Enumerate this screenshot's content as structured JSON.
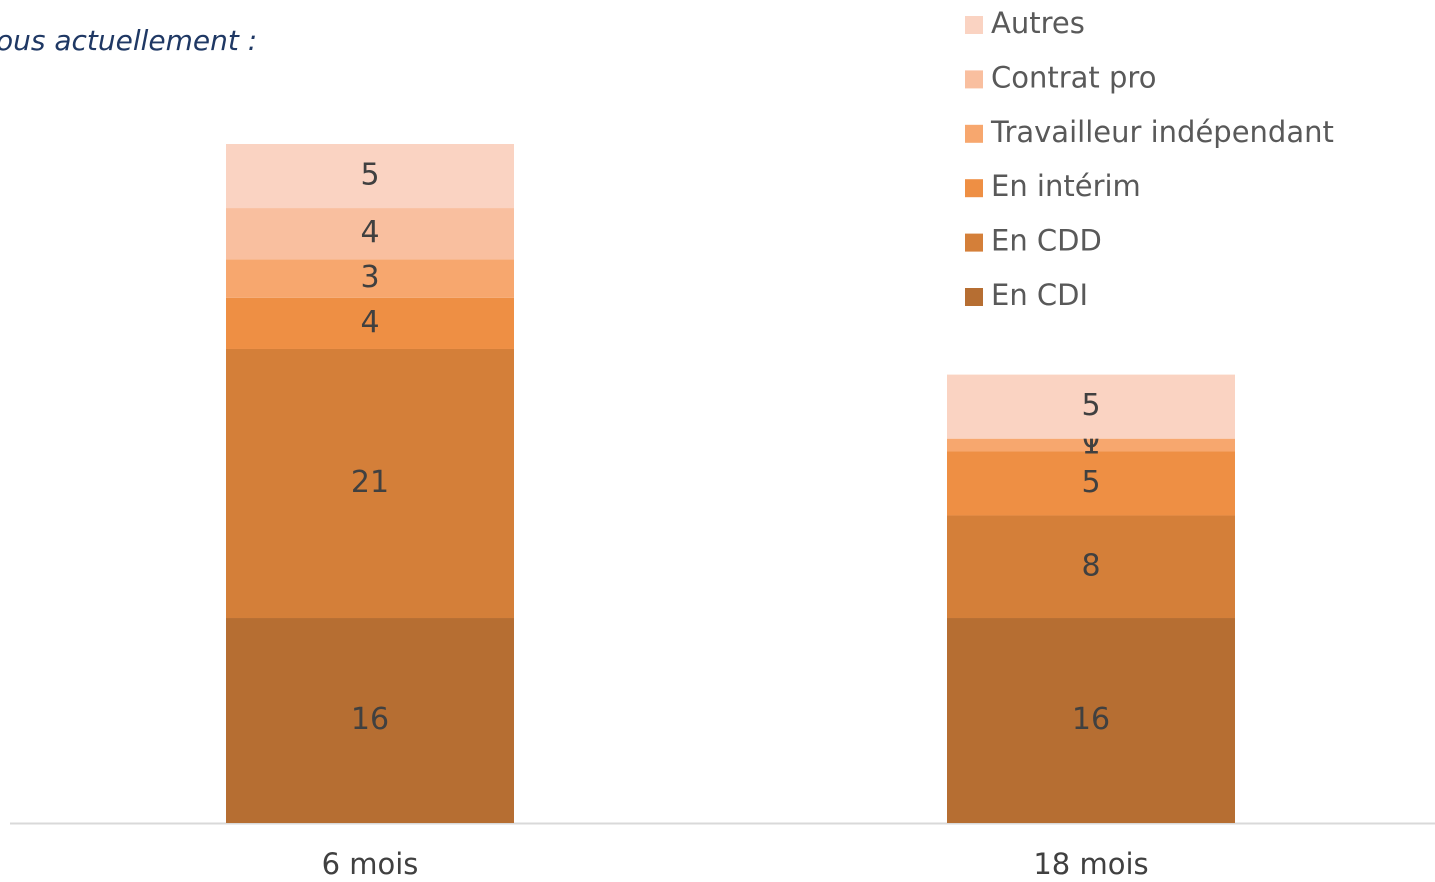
{
  "chart_data": {
    "type": "stacked_bar",
    "title": "ous actuellement :",
    "categories": [
      "6 mois",
      "18 mois"
    ],
    "series": [
      {
        "name": "En CDI",
        "color": "#b66e32",
        "values": [
          16,
          16
        ]
      },
      {
        "name": "En CDD",
        "color": "#d47f39",
        "values": [
          21,
          8
        ]
      },
      {
        "name": "En intérim",
        "color": "#ee8f44",
        "values": [
          4,
          5
        ]
      },
      {
        "name": "Travailleur indépendant",
        "color": "#f7a76e",
        "values": [
          3,
          1
        ]
      },
      {
        "name": "Contrat pro",
        "color": "#f9bf9f",
        "values": [
          4,
          0
        ]
      },
      {
        "name": "Autres",
        "color": "#fad3c2",
        "values": [
          5,
          5
        ]
      }
    ],
    "legend": "top-right"
  }
}
